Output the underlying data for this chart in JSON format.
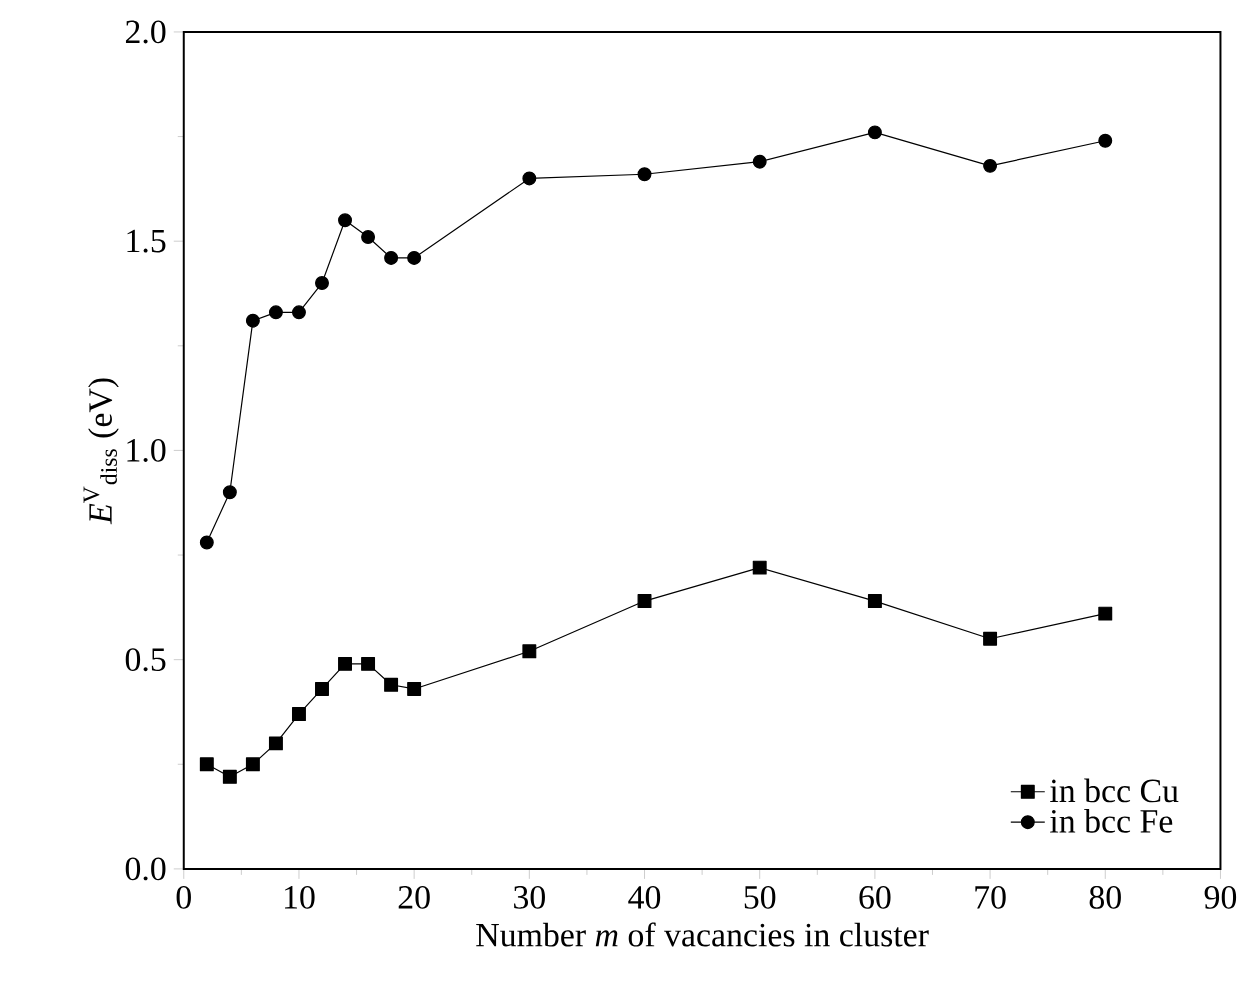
{
  "chart_data": {
    "type": "line",
    "xlabel": "Number *m* of vacancies in cluster",
    "ylabel": "*E*$^{V}$$_{diss}$ (eV)",
    "xlim": [
      0,
      90
    ],
    "xticks": [
      0,
      10,
      20,
      30,
      40,
      50,
      60,
      70,
      80,
      90
    ],
    "ylim": [
      0.0,
      2.0
    ],
    "yticks": [
      {
        "value": 0,
        "label": "0.0"
      },
      {
        "value": 0.5,
        "label": "0.5"
      },
      {
        "value": 1,
        "label": "1.0"
      },
      {
        "value": 1.5,
        "label": "1.5"
      },
      {
        "value": 2,
        "label": "2.0"
      }
    ],
    "x": [
      2,
      4,
      6,
      8,
      10,
      12,
      14,
      16,
      18,
      20,
      30,
      40,
      50,
      60,
      70,
      80
    ],
    "series": [
      {
        "name": "in bcc Cu",
        "color": "#000000",
        "marker": "square",
        "values": [
          0.25,
          0.22,
          0.25,
          0.3,
          0.37,
          0.43,
          0.49,
          0.49,
          0.44,
          0.43,
          0.52,
          0.64,
          0.72,
          0.64,
          0.55,
          0.61
        ]
      },
      {
        "name": "in bcc Fe",
        "color": "#000000",
        "marker": "circle",
        "values": [
          0.78,
          0.9,
          1.31,
          1.33,
          1.33,
          1.4,
          1.55,
          1.51,
          1.46,
          1.46,
          1.65,
          1.66,
          1.69,
          1.76,
          1.68,
          1.74
        ]
      }
    ],
    "legend": "bottom right",
    "grid": false,
    "line_style": "solid"
  }
}
